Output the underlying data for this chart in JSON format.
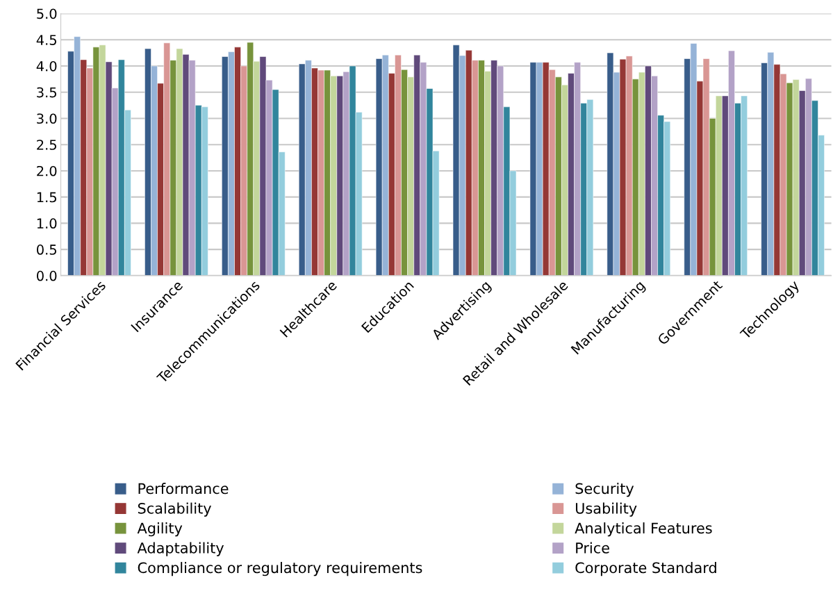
{
  "chart_data": {
    "type": "bar",
    "categories": [
      "Financial Services",
      "Insurance",
      "Telecommunications",
      "Healthcare",
      "Education",
      "Advertising",
      "Retail and Wholesale",
      "Manufacturing",
      "Government",
      "Technology"
    ],
    "series": [
      {
        "name": "Performance",
        "color": "#385d8a",
        "values": [
          4.28,
          4.33,
          4.18,
          4.04,
          4.14,
          4.4,
          4.07,
          4.25,
          4.14,
          4.06
        ]
      },
      {
        "name": "Security",
        "color": "#95b3d7",
        "values": [
          4.56,
          4.0,
          4.27,
          4.11,
          4.21,
          4.2,
          4.07,
          3.88,
          4.43,
          4.26
        ]
      },
      {
        "name": "Scalability",
        "color": "#953735",
        "values": [
          4.12,
          3.67,
          4.36,
          3.96,
          3.86,
          4.3,
          4.07,
          4.13,
          3.71,
          4.03
        ]
      },
      {
        "name": "Usability",
        "color": "#d99694",
        "values": [
          3.96,
          4.44,
          4.0,
          3.92,
          4.21,
          4.11,
          3.93,
          4.19,
          4.14,
          3.85
        ]
      },
      {
        "name": "Agility",
        "color": "#77933c",
        "values": [
          4.36,
          4.11,
          4.45,
          3.92,
          3.93,
          4.11,
          3.79,
          3.75,
          3.0,
          3.68
        ]
      },
      {
        "name": "Analytical Features",
        "color": "#c3d69b",
        "values": [
          4.4,
          4.33,
          4.09,
          3.81,
          3.79,
          3.9,
          3.64,
          3.88,
          3.43,
          3.74
        ]
      },
      {
        "name": "Adaptability",
        "color": "#604a7b",
        "values": [
          4.08,
          4.22,
          4.18,
          3.81,
          4.21,
          4.11,
          3.86,
          4.0,
          3.43,
          3.53
        ]
      },
      {
        "name": "Price",
        "color": "#b3a2c7",
        "values": [
          3.58,
          4.11,
          3.73,
          3.89,
          4.07,
          4.0,
          4.07,
          3.81,
          4.29,
          3.76
        ]
      },
      {
        "name": "Compliance or regulatory requirements",
        "color": "#31859c",
        "values": [
          4.12,
          3.25,
          3.55,
          4.0,
          3.57,
          3.22,
          3.29,
          3.06,
          3.29,
          3.34
        ]
      },
      {
        "name": "Corporate Standard",
        "color": "#93cddd",
        "values": [
          3.16,
          3.22,
          2.36,
          3.12,
          2.38,
          2.0,
          3.36,
          2.94,
          3.43,
          2.68
        ]
      }
    ],
    "ylim": [
      0,
      5
    ],
    "yticks": [
      {
        "value": 0,
        "label": "0.0"
      },
      {
        "value": 0.5,
        "label": "0.5"
      },
      {
        "value": 1,
        "label": "1.0"
      },
      {
        "value": 1.5,
        "label": "1.5"
      },
      {
        "value": 2,
        "label": "2.0"
      },
      {
        "value": 2.5,
        "label": "2.5"
      },
      {
        "value": 3,
        "label": "3.0"
      },
      {
        "value": 3.5,
        "label": "3.5"
      },
      {
        "value": 4,
        "label": "4.0"
      },
      {
        "value": 4.5,
        "label": "4.5"
      },
      {
        "value": 5,
        "label": "5.0"
      }
    ],
    "grid": "y",
    "legend": "bottom"
  }
}
